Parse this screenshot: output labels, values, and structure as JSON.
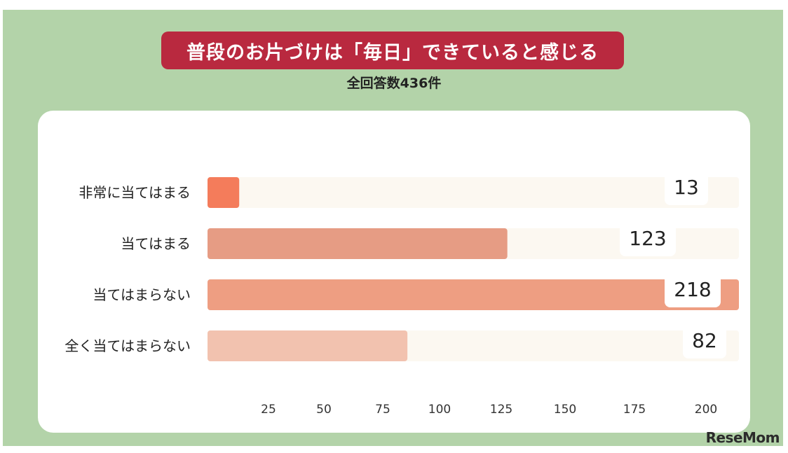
{
  "chart_data": {
    "type": "bar",
    "orientation": "horizontal",
    "title": "普段のお片づけは「毎日」できていると感じる",
    "subtitle": "全回答数436件",
    "categories": [
      "非常に当てはまる",
      "当てはまる",
      "当てはまらない",
      "全く当てはまらない"
    ],
    "values": [
      13,
      123,
      218,
      82
    ],
    "value_labels": [
      "13",
      "123",
      "218",
      "82"
    ],
    "bar_colors": [
      "#f47c5b",
      "#e69c84",
      "#ee9e82",
      "#f2c2af"
    ],
    "track_color": "#fcf8f1",
    "xticks": [
      "25",
      "50",
      "75",
      "100",
      "125",
      "150",
      "175",
      "200"
    ],
    "grid": false,
    "legend": "none"
  },
  "logo_text": "ReseMom"
}
